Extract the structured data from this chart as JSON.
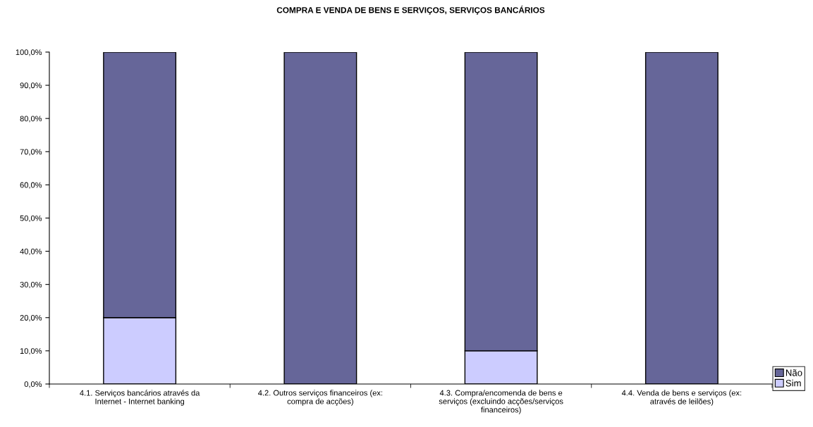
{
  "chart_data": {
    "type": "bar",
    "stacked": true,
    "title": "COMPRA E VENDA DE BENS E SERVIÇOS, SERVIÇOS BANCÁRIOS",
    "categories": [
      "4.1. Serviços bancários através da\nInternet - Internet banking",
      "4.2. Outros serviços financeiros (ex:\ncompra de acções)",
      "4.3. Compra/encomenda de bens e\nserviços (excluindo acções/serviços\nfinanceiros)",
      "4.4. Venda de bens e serviços (ex:\natravés de leilões)"
    ],
    "series": [
      {
        "name": "Sim",
        "color": "#ccccff",
        "values": [
          20,
          0,
          10,
          0
        ]
      },
      {
        "name": "Não",
        "color": "#666699",
        "values": [
          80,
          100,
          90,
          100
        ]
      }
    ],
    "ylim": [
      0,
      100
    ],
    "yticks": [
      {
        "value": 0,
        "label": "0,0%"
      },
      {
        "value": 10,
        "label": "10,0%"
      },
      {
        "value": 20,
        "label": "20,0%"
      },
      {
        "value": 30,
        "label": "30,0%"
      },
      {
        "value": 40,
        "label": "40,0%"
      },
      {
        "value": 50,
        "label": "50,0%"
      },
      {
        "value": 60,
        "label": "60,0%"
      },
      {
        "value": 70,
        "label": "70,0%"
      },
      {
        "value": 80,
        "label": "80,0%"
      },
      {
        "value": 90,
        "label": "90,0%"
      },
      {
        "value": 100,
        "label": "100,0%"
      }
    ],
    "grid": false,
    "legend": "bottom right"
  }
}
